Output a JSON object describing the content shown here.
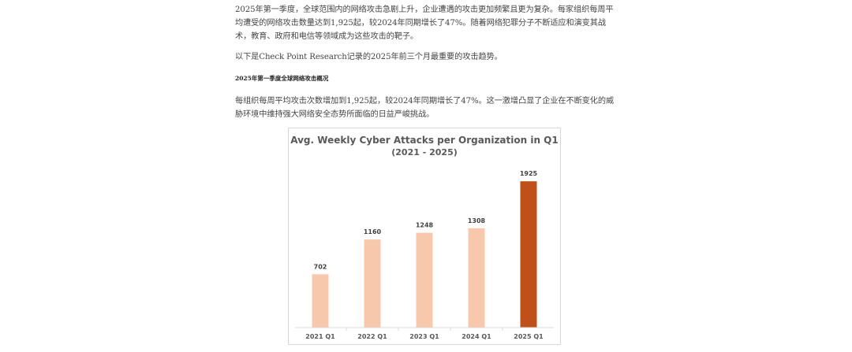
{
  "article": {
    "paragraph_1": "2025年第一季度，全球范围内的网络攻击急剧上升，企业遭遇的攻击更加频繁且更为复杂。每家组织每周平均遭受的网络攻击数量达到1,925起，较2024年同期增长了47%。随着网络犯罪分子不断适应和演变其战术，教育、政府和电信等领域成为这些攻击的靶子。",
    "paragraph_2": "以下是Check Point Research记录的2025年前三个月最重要的攻击趋势。",
    "section_heading": "2025年第一季度全球网络攻击概况",
    "paragraph_3": "每组织每周平均攻击次数增加到1,925起，较2024年同期增长了47%。这一激增凸显了企业在不断变化的威胁环境中维持强大网络安全态势所面临的日益严峻挑战。"
  },
  "colors": {
    "bar_default": "#f8c8ad",
    "bar_highlight": "#c0501a",
    "axis": "#d9d9d9"
  },
  "chart_data": {
    "type": "bar",
    "title": "Avg. Weekly Cyber Attacks per Organization in Q1",
    "subtitle": "(2021 - 2025)",
    "categories": [
      "2021 Q1",
      "2022 Q1",
      "2023 Q1",
      "2024 Q1",
      "2025 Q1"
    ],
    "values": [
      702,
      1160,
      1248,
      1308,
      1925
    ],
    "data_labels": [
      "702",
      "1160",
      "1248",
      "1308",
      "1925"
    ],
    "highlight_index": 4,
    "xlabel": "",
    "ylabel": "",
    "ylim": [
      0,
      2000
    ],
    "grid": false,
    "legend": "none"
  }
}
